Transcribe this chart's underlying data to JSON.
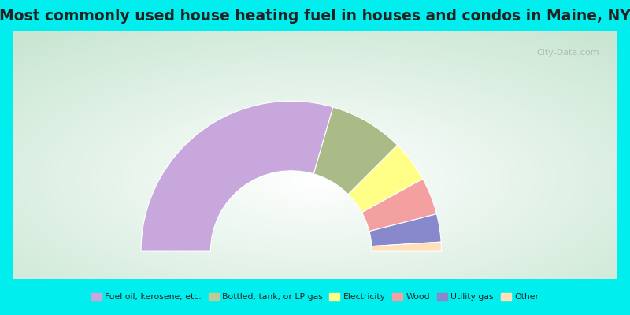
{
  "title": "Most commonly used house heating fuel in houses and condos in Maine, NY",
  "background_color": "#00EEEE",
  "chart_border_color": "#ffffff",
  "segments": [
    {
      "label": "Fuel oil, kerosene, etc.",
      "value": 59,
      "color": "#C8A8DC"
    },
    {
      "label": "Bottled, tank, or LP gas",
      "value": 16,
      "color": "#AABB88"
    },
    {
      "label": "Electricity",
      "value": 9,
      "color": "#FFFF88"
    },
    {
      "label": "Wood",
      "value": 8,
      "color": "#F4A0A0"
    },
    {
      "label": "Utility gas",
      "value": 6,
      "color": "#8888CC"
    },
    {
      "label": "Other",
      "value": 2,
      "color": "#FFE0BB"
    }
  ],
  "legend_colors": [
    "#C8A8DC",
    "#BBCC99",
    "#FFFF88",
    "#F4A0A0",
    "#8888CC",
    "#FFE0BB"
  ],
  "legend_labels": [
    "Fuel oil, kerosene, etc.",
    "Bottled, tank, or LP gas",
    "Electricity",
    "Wood",
    "Utility gas",
    "Other"
  ],
  "title_fontsize": 13.5,
  "title_color": "#222222",
  "watermark": "City-Data.com",
  "outer_r": 0.82,
  "inner_r": 0.44
}
